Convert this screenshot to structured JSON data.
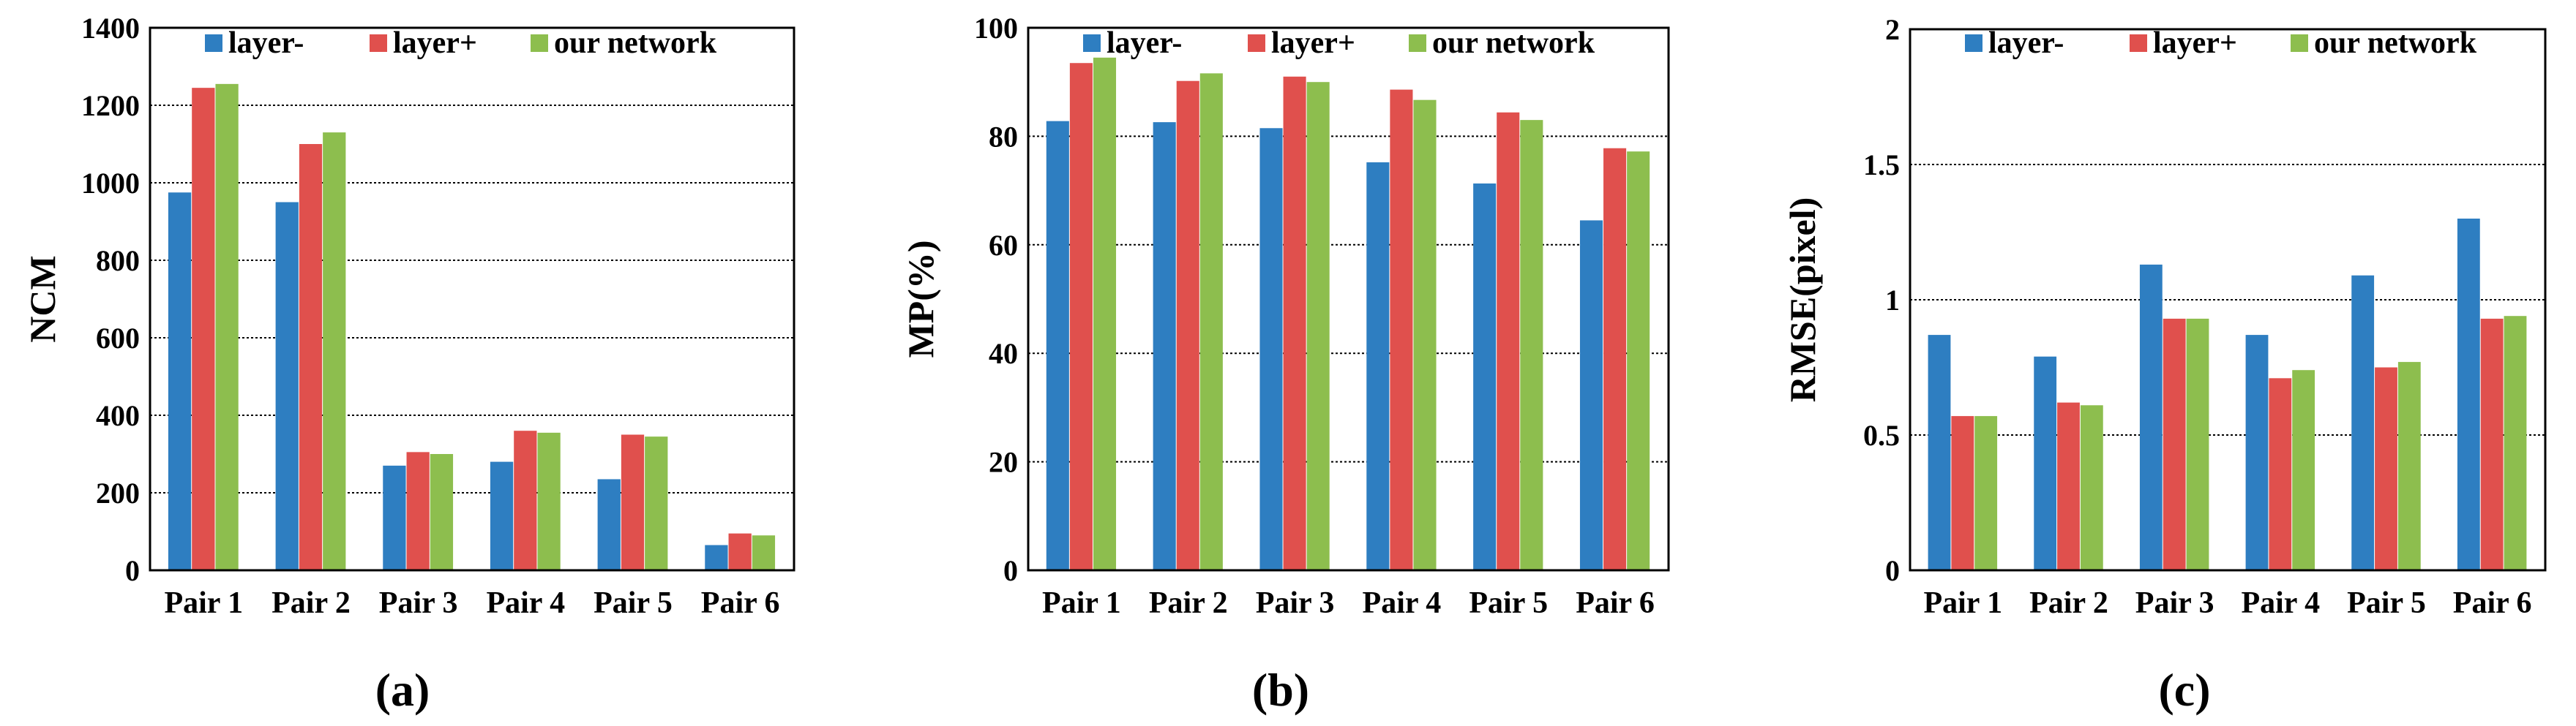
{
  "colors": {
    "series": [
      "#2E7EC1",
      "#E0504D",
      "#8DBE4E"
    ]
  },
  "panels": [
    {
      "letter": "(a)"
    },
    {
      "letter": "(b)"
    },
    {
      "letter": "(c)"
    }
  ],
  "chart_data": [
    {
      "type": "bar",
      "categories": [
        "Pair 1",
        "Pair 2",
        "Pair 3",
        "Pair 4",
        "Pair 5",
        "Pair 6"
      ],
      "series": [
        {
          "name": "layer-",
          "values": [
            975,
            950,
            270,
            280,
            235,
            65
          ]
        },
        {
          "name": "layer+",
          "values": [
            1245,
            1100,
            305,
            360,
            350,
            95
          ]
        },
        {
          "name": "our network",
          "values": [
            1255,
            1130,
            300,
            355,
            345,
            90
          ]
        }
      ],
      "xlabel": "",
      "ylabel": "NCM",
      "ylim": [
        0,
        1400
      ],
      "yticks": [
        "0",
        "200",
        "400",
        "600",
        "800",
        "1000",
        "1200",
        "1400"
      ],
      "grid": true,
      "legend": "top"
    },
    {
      "type": "bar",
      "categories": [
        "Pair 1",
        "Pair 2",
        "Pair 3",
        "Pair 4",
        "Pair 5",
        "Pair 6"
      ],
      "series": [
        {
          "name": "layer-",
          "values": [
            82.8,
            82.6,
            81.5,
            75.2,
            71.3,
            64.5
          ]
        },
        {
          "name": "layer+",
          "values": [
            93.5,
            90.2,
            91.0,
            88.6,
            84.4,
            77.8
          ]
        },
        {
          "name": "our network",
          "values": [
            94.5,
            91.6,
            90.0,
            86.7,
            83.0,
            77.2
          ]
        }
      ],
      "xlabel": "",
      "ylabel": "MP(%)",
      "ylim": [
        0,
        100
      ],
      "yticks": [
        "0",
        "20",
        "40",
        "60",
        "80",
        "100"
      ],
      "grid": true,
      "legend": "top"
    },
    {
      "type": "bar",
      "categories": [
        "Pair 1",
        "Pair 2",
        "Pair 3",
        "Pair 4",
        "Pair 5",
        "Pair 6"
      ],
      "series": [
        {
          "name": "layer-",
          "values": [
            0.87,
            0.79,
            1.13,
            0.87,
            1.09,
            1.3
          ]
        },
        {
          "name": "layer+",
          "values": [
            0.57,
            0.62,
            0.93,
            0.71,
            0.75,
            0.93
          ]
        },
        {
          "name": "our network",
          "values": [
            0.57,
            0.61,
            0.93,
            0.74,
            0.77,
            0.94
          ]
        }
      ],
      "xlabel": "",
      "ylabel": "RMSE(pixel)",
      "ylim": [
        0,
        2
      ],
      "yticks": [
        "0",
        "0.5",
        "1",
        "1.5",
        "2"
      ],
      "grid": true,
      "legend": "top"
    }
  ]
}
